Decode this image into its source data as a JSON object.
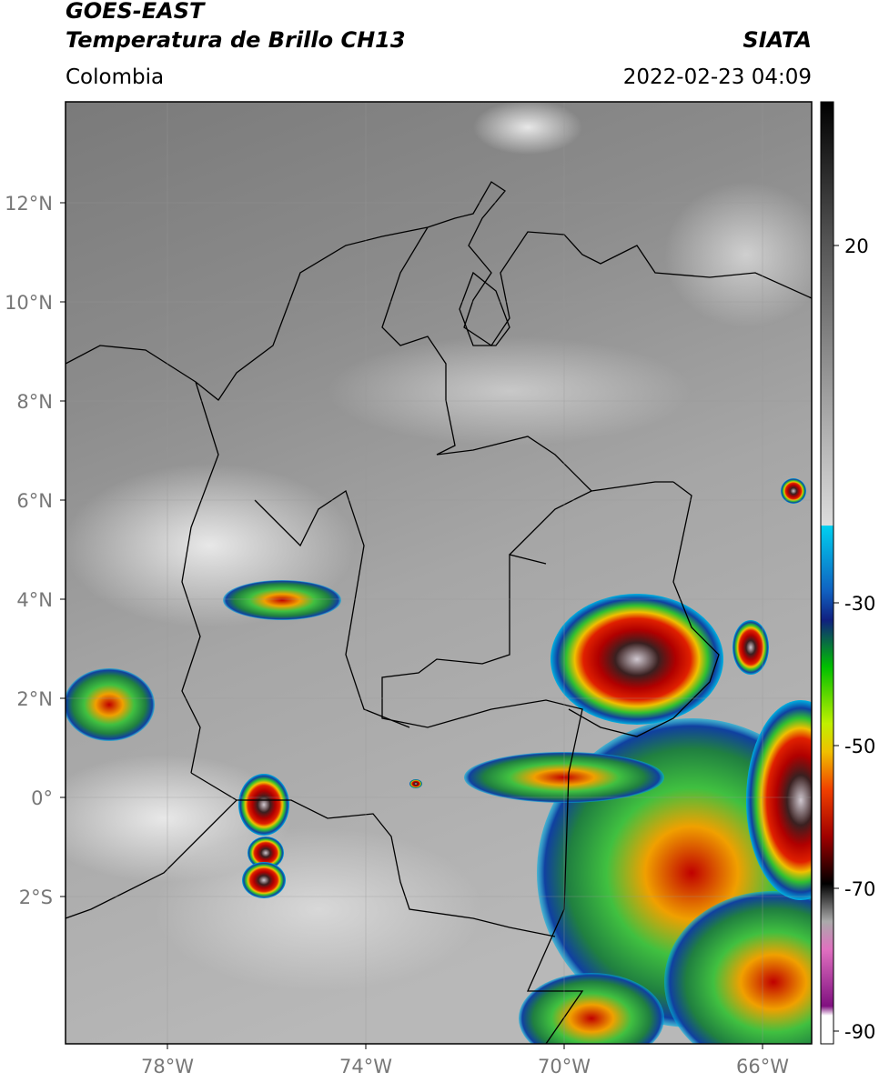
{
  "header": {
    "title_1": "GOES-EAST",
    "title_2": "Temperatura de Brillo CH13",
    "source": "SIATA",
    "region": "Colombia",
    "datetime": "2022-02-23 04:09"
  },
  "map": {
    "lat_labels": [
      "12°N",
      "10°N",
      "8°N",
      "6°N",
      "4°N",
      "2°N",
      "0°",
      "2°S"
    ],
    "lon_labels": [
      "78°W",
      "74°W",
      "70°W",
      "66°W"
    ]
  },
  "colorbar": {
    "ticks": [
      20,
      -30,
      -50,
      -70,
      -90
    ]
  }
}
